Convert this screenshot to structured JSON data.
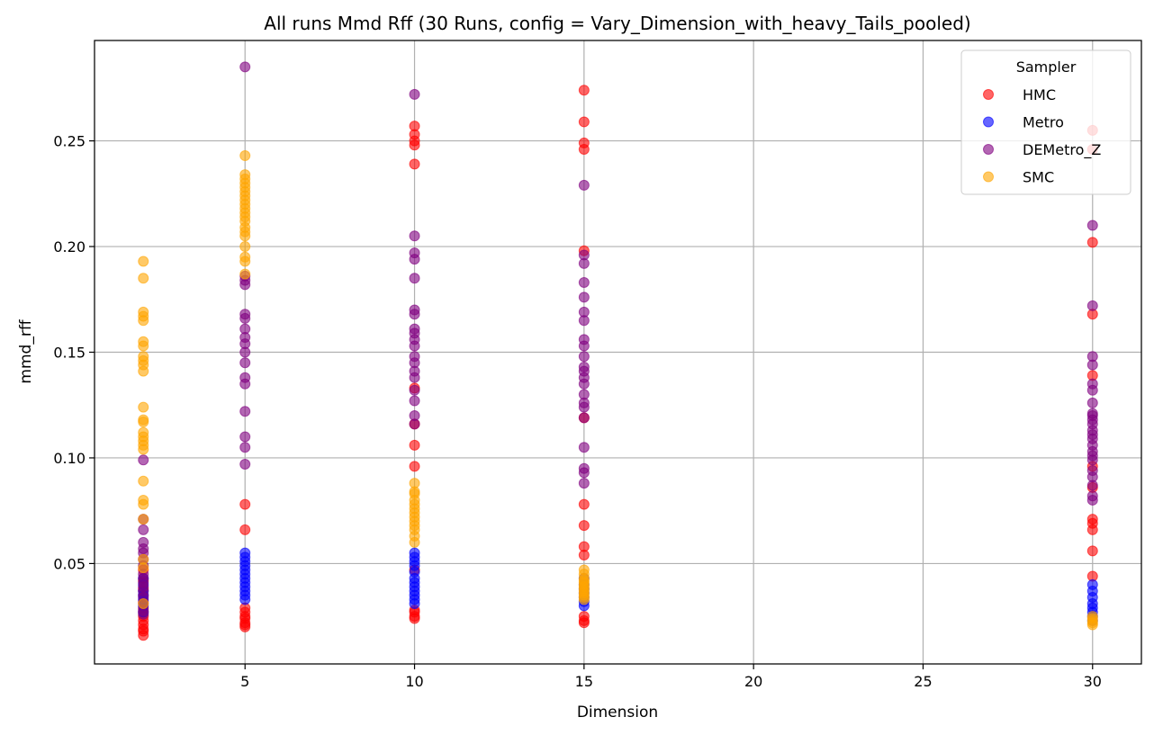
{
  "chart_data": {
    "type": "scatter",
    "title": "All runs Mmd Rff (30 Runs, config = Vary_Dimension_with_heavy_Tails_pooled)",
    "xlabel": "Dimension",
    "ylabel": "mmd_rff",
    "xlim": [
      0.56,
      31.44
    ],
    "ylim": [
      0.0025,
      0.2975
    ],
    "xticks": [
      5,
      10,
      15,
      20,
      25,
      30
    ],
    "xtick_labels": [
      "5",
      "10",
      "15",
      "20",
      "25",
      "30"
    ],
    "yticks": [
      0.05,
      0.1,
      0.15,
      0.2,
      0.25
    ],
    "ytick_labels": [
      "0.05",
      "0.10",
      "0.15",
      "0.20",
      "0.25"
    ],
    "grid": true,
    "legend": {
      "title": "Sampler",
      "position": "top-right"
    },
    "series": [
      {
        "name": "HMC",
        "color": "#ff0000",
        "points": [
          {
            "x": 2,
            "ys": [
              0.016,
              0.018,
              0.019,
              0.021,
              0.023,
              0.025,
              0.027,
              0.029,
              0.032,
              0.035,
              0.038,
              0.042,
              0.047
            ]
          },
          {
            "x": 5,
            "ys": [
              0.02,
              0.021,
              0.022,
              0.024,
              0.025,
              0.027,
              0.029,
              0.066,
              0.078
            ]
          },
          {
            "x": 10,
            "ys": [
              0.024,
              0.025,
              0.027,
              0.028,
              0.047,
              0.096,
              0.106,
              0.116,
              0.133,
              0.239,
              0.248,
              0.25,
              0.253,
              0.257
            ]
          },
          {
            "x": 15,
            "ys": [
              0.022,
              0.023,
              0.025,
              0.054,
              0.058,
              0.068,
              0.078,
              0.119,
              0.198,
              0.246,
              0.249,
              0.259,
              0.274
            ]
          },
          {
            "x": 30,
            "ys": [
              0.044,
              0.056,
              0.066,
              0.069,
              0.071,
              0.086,
              0.096,
              0.139,
              0.168,
              0.202,
              0.246,
              0.255
            ]
          }
        ]
      },
      {
        "name": "Metro",
        "color": "#0000ff",
        "points": [
          {
            "x": 2,
            "ys": [
              0.027,
              0.03,
              0.033,
              0.035,
              0.037,
              0.04,
              0.043
            ]
          },
          {
            "x": 5,
            "ys": [
              0.033,
              0.035,
              0.037,
              0.039,
              0.041,
              0.043,
              0.045,
              0.047,
              0.049,
              0.051,
              0.053,
              0.055
            ]
          },
          {
            "x": 10,
            "ys": [
              0.031,
              0.033,
              0.035,
              0.037,
              0.039,
              0.041,
              0.043,
              0.046,
              0.049,
              0.051,
              0.053,
              0.055
            ]
          },
          {
            "x": 15,
            "ys": [
              0.03,
              0.032,
              0.034,
              0.036,
              0.038,
              0.04,
              0.043
            ]
          },
          {
            "x": 30,
            "ys": [
              0.023,
              0.025,
              0.027,
              0.029,
              0.031,
              0.034,
              0.037,
              0.04
            ]
          }
        ]
      },
      {
        "name": "DEMetro_Z",
        "color": "#800080",
        "points": [
          {
            "x": 2,
            "ys": [
              0.026,
              0.028,
              0.031,
              0.034,
              0.037,
              0.039,
              0.041,
              0.043,
              0.045,
              0.049,
              0.052,
              0.055,
              0.057,
              0.06,
              0.066,
              0.071,
              0.099
            ]
          },
          {
            "x": 5,
            "ys": [
              0.097,
              0.105,
              0.11,
              0.122,
              0.135,
              0.138,
              0.145,
              0.15,
              0.154,
              0.157,
              0.161,
              0.166,
              0.168,
              0.182,
              0.184,
              0.186,
              0.285
            ]
          },
          {
            "x": 10,
            "ys": [
              0.116,
              0.12,
              0.127,
              0.132,
              0.138,
              0.141,
              0.145,
              0.148,
              0.153,
              0.156,
              0.159,
              0.161,
              0.168,
              0.17,
              0.185,
              0.194,
              0.197,
              0.205,
              0.272
            ]
          },
          {
            "x": 15,
            "ys": [
              0.088,
              0.093,
              0.095,
              0.105,
              0.119,
              0.124,
              0.126,
              0.13,
              0.135,
              0.138,
              0.141,
              0.143,
              0.148,
              0.153,
              0.156,
              0.165,
              0.169,
              0.176,
              0.183,
              0.192,
              0.196,
              0.229
            ]
          },
          {
            "x": 30,
            "ys": [
              0.08,
              0.082,
              0.087,
              0.091,
              0.094,
              0.099,
              0.101,
              0.103,
              0.106,
              0.109,
              0.111,
              0.113,
              0.116,
              0.118,
              0.12,
              0.121,
              0.126,
              0.132,
              0.135,
              0.144,
              0.148,
              0.172,
              0.21
            ]
          }
        ]
      },
      {
        "name": "SMC",
        "color": "#ffa500",
        "points": [
          {
            "x": 2,
            "ys": [
              0.031,
              0.048,
              0.052,
              0.071,
              0.078,
              0.08,
              0.089,
              0.104,
              0.106,
              0.108,
              0.11,
              0.112,
              0.117,
              0.118,
              0.124,
              0.141,
              0.144,
              0.146,
              0.148,
              0.153,
              0.155,
              0.165,
              0.167,
              0.169,
              0.185,
              0.193
            ]
          },
          {
            "x": 5,
            "ys": [
              0.187,
              0.193,
              0.195,
              0.2,
              0.205,
              0.207,
              0.209,
              0.212,
              0.214,
              0.216,
              0.218,
              0.22,
              0.222,
              0.224,
              0.226,
              0.228,
              0.23,
              0.232,
              0.234,
              0.243
            ]
          },
          {
            "x": 10,
            "ys": [
              0.06,
              0.063,
              0.066,
              0.068,
              0.07,
              0.072,
              0.074,
              0.076,
              0.078,
              0.08,
              0.083,
              0.084,
              0.088
            ]
          },
          {
            "x": 15,
            "ys": [
              0.033,
              0.034,
              0.035,
              0.036,
              0.037,
              0.038,
              0.039,
              0.04,
              0.041,
              0.042,
              0.043,
              0.045,
              0.047
            ]
          },
          {
            "x": 30,
            "ys": [
              0.021,
              0.022,
              0.023,
              0.024,
              0.025
            ]
          }
        ]
      }
    ]
  }
}
